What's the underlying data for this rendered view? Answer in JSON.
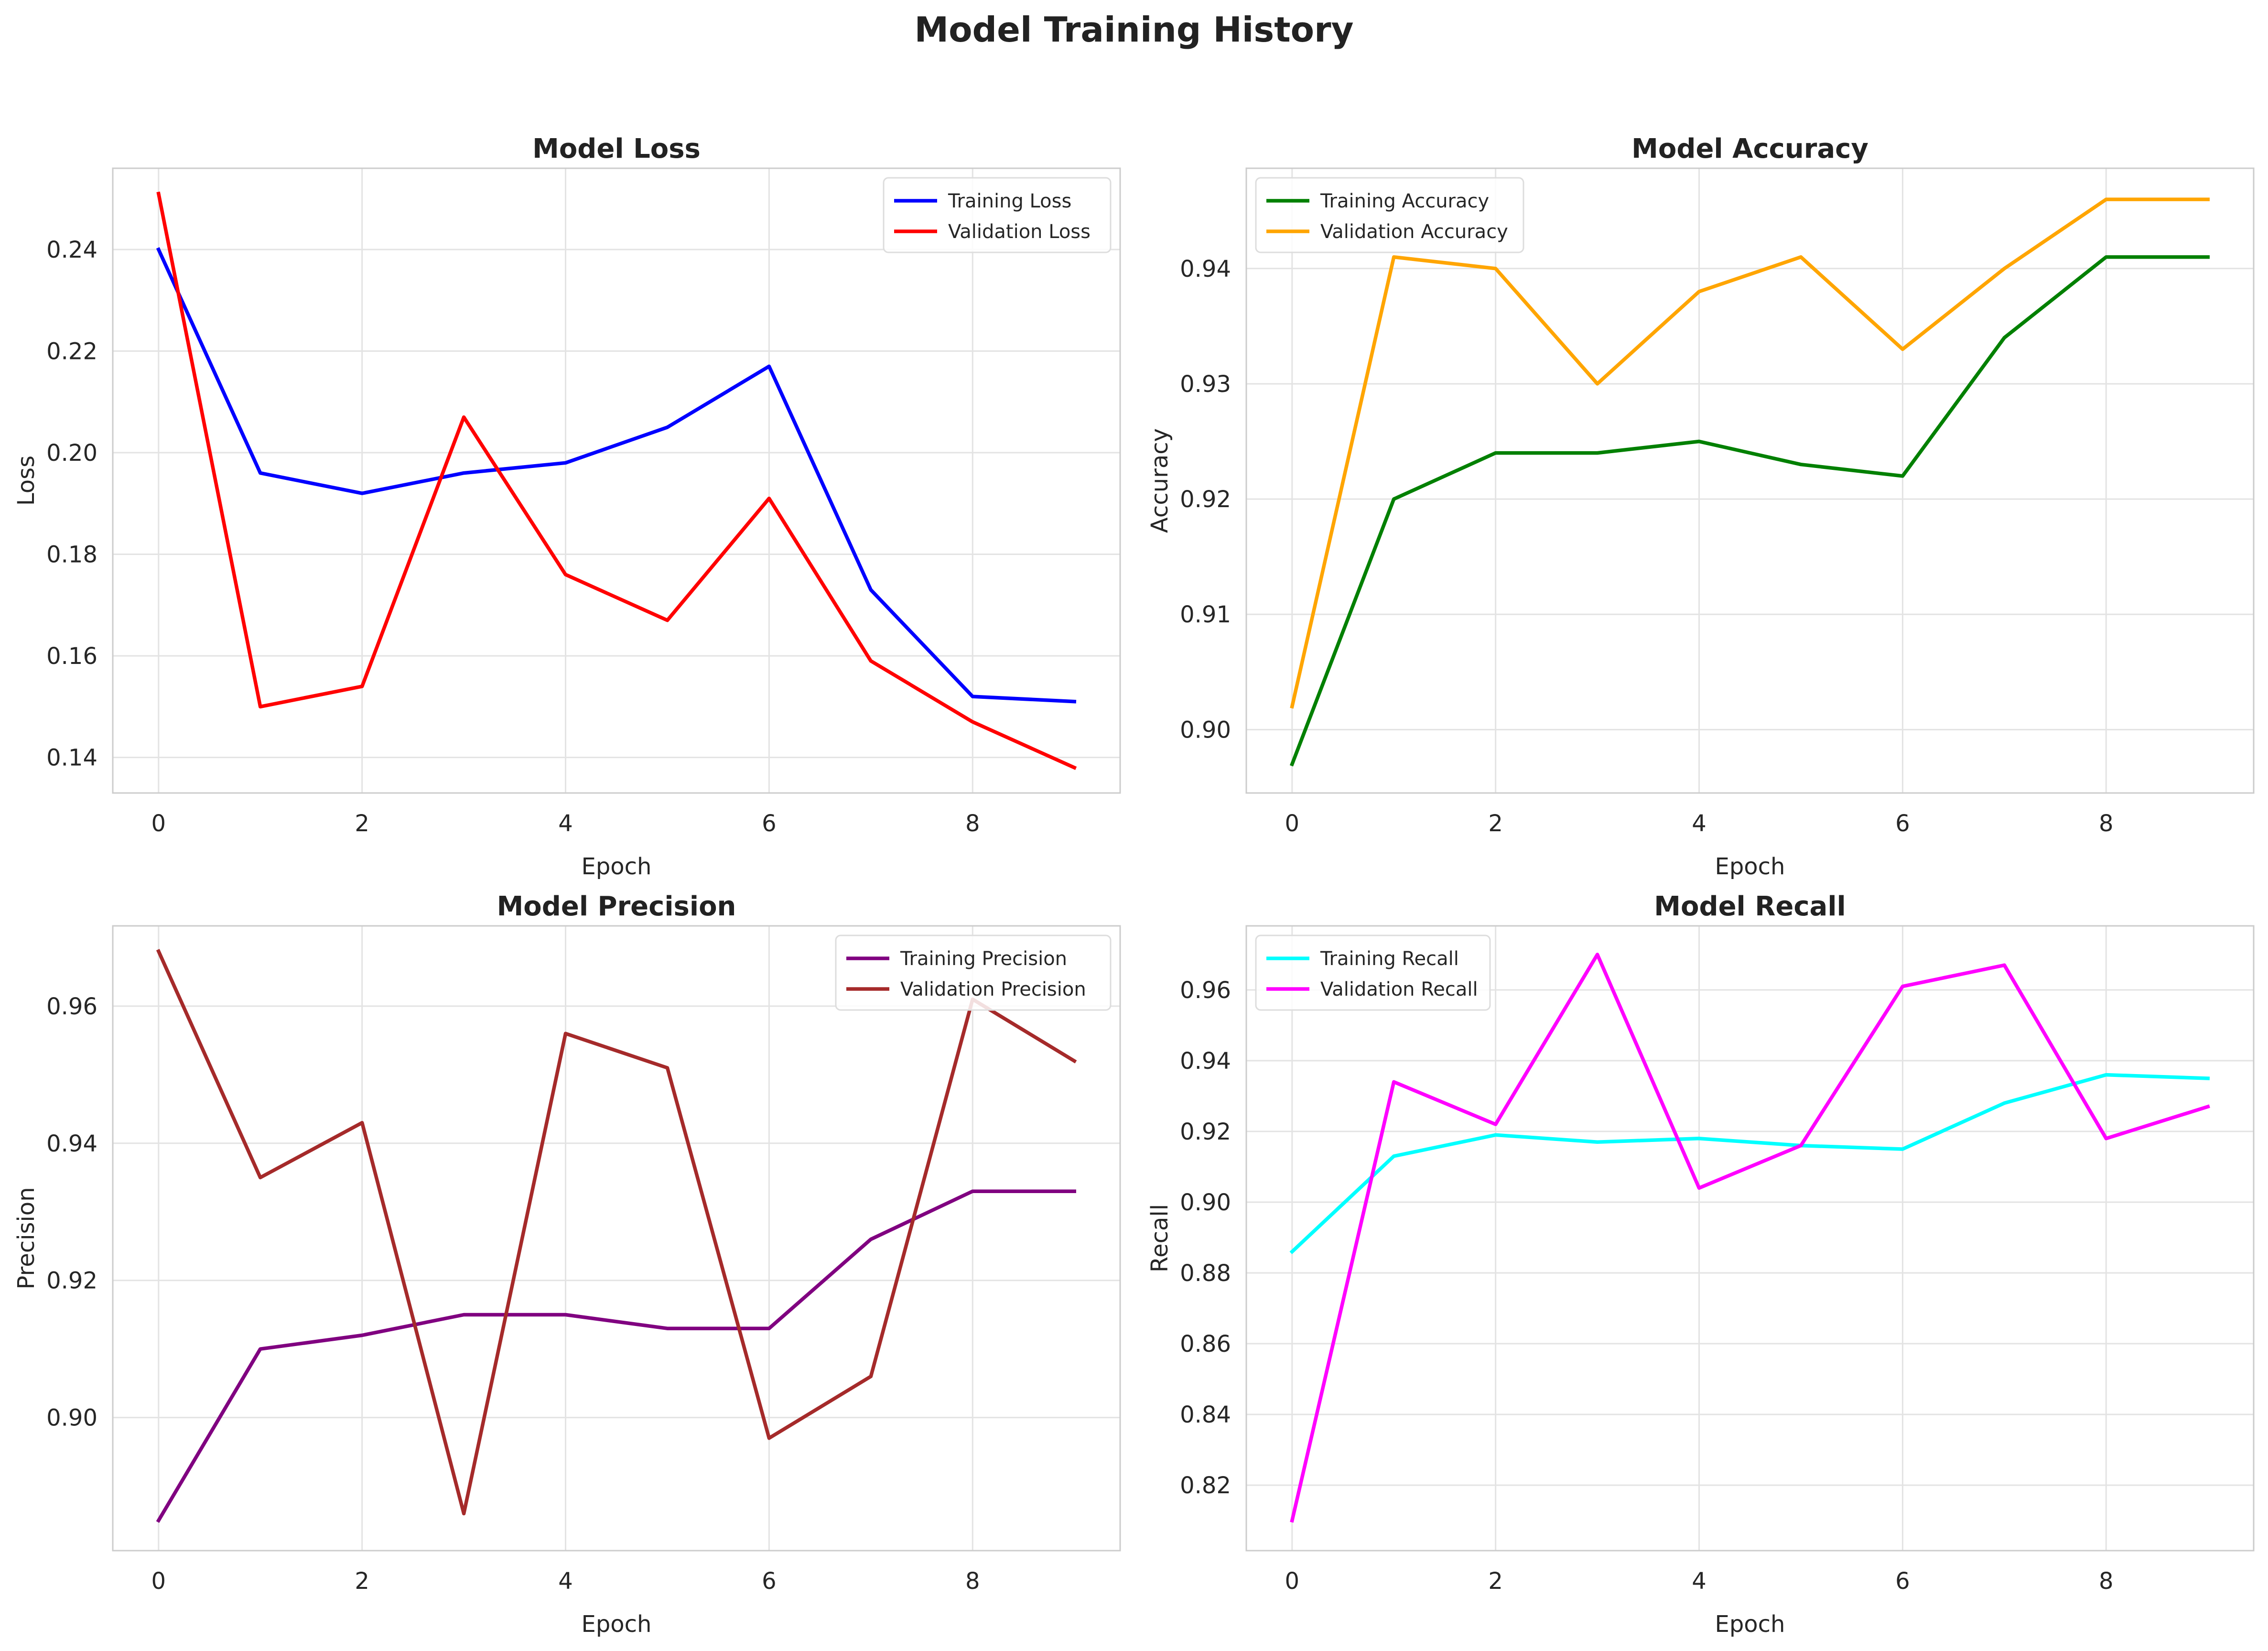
{
  "figure": {
    "title": "Model Training History"
  },
  "chart_data": [
    {
      "type": "line",
      "title": "Model Loss",
      "xlabel": "Epoch",
      "ylabel": "Loss",
      "x": [
        0,
        1,
        2,
        3,
        4,
        5,
        6,
        7,
        8,
        9
      ],
      "xlim": [
        -0.45,
        9.45
      ],
      "ylim": [
        0.133,
        0.256
      ],
      "xticks": [
        "0",
        "2",
        "4",
        "6",
        "8"
      ],
      "xtick_values": [
        0,
        2,
        4,
        6,
        8
      ],
      "yticks": [
        "0.14",
        "0.16",
        "0.18",
        "0.20",
        "0.22",
        "0.24"
      ],
      "ytick_values": [
        0.14,
        0.16,
        0.18,
        0.2,
        0.22,
        0.24
      ],
      "grid": true,
      "legend": "upper right",
      "series": [
        {
          "name": "Training Loss",
          "color": "#0000ff",
          "values": [
            0.24,
            0.196,
            0.192,
            0.196,
            0.198,
            0.205,
            0.217,
            0.173,
            0.152,
            0.151
          ]
        },
        {
          "name": "Validation Loss",
          "color": "#ff0000",
          "values": [
            0.251,
            0.15,
            0.154,
            0.207,
            0.176,
            0.167,
            0.191,
            0.159,
            0.147,
            0.138
          ]
        }
      ]
    },
    {
      "type": "line",
      "title": "Model Accuracy",
      "xlabel": "Epoch",
      "ylabel": "Accuracy",
      "x": [
        0,
        1,
        2,
        3,
        4,
        5,
        6,
        7,
        8,
        9
      ],
      "xlim": [
        -0.45,
        9.45
      ],
      "ylim": [
        0.8945,
        0.9487
      ],
      "xticks": [
        "0",
        "2",
        "4",
        "6",
        "8"
      ],
      "xtick_values": [
        0,
        2,
        4,
        6,
        8
      ],
      "yticks": [
        "0.90",
        "0.91",
        "0.92",
        "0.93",
        "0.94"
      ],
      "ytick_values": [
        0.9,
        0.91,
        0.92,
        0.93,
        0.94
      ],
      "grid": true,
      "legend": "upper left",
      "series": [
        {
          "name": "Training Accuracy",
          "color": "#008000",
          "values": [
            0.897,
            0.92,
            0.924,
            0.924,
            0.925,
            0.923,
            0.922,
            0.934,
            0.941,
            0.941
          ]
        },
        {
          "name": "Validation Accuracy",
          "color": "#ffa500",
          "values": [
            0.902,
            0.941,
            0.94,
            0.93,
            0.938,
            0.941,
            0.933,
            0.94,
            0.946,
            0.946
          ]
        }
      ]
    },
    {
      "type": "line",
      "title": "Model Precision",
      "xlabel": "Epoch",
      "ylabel": "Precision",
      "x": [
        0,
        1,
        2,
        3,
        4,
        5,
        6,
        7,
        8,
        9
      ],
      "xlim": [
        -0.45,
        9.45
      ],
      "ylim": [
        0.8806,
        0.9717
      ],
      "xticks": [
        "0",
        "2",
        "4",
        "6",
        "8"
      ],
      "xtick_values": [
        0,
        2,
        4,
        6,
        8
      ],
      "yticks": [
        "0.90",
        "0.92",
        "0.94",
        "0.96"
      ],
      "ytick_values": [
        0.9,
        0.92,
        0.94,
        0.96
      ],
      "grid": true,
      "legend": "upper right",
      "series": [
        {
          "name": "Training Precision",
          "color": "#800080",
          "values": [
            0.885,
            0.91,
            0.912,
            0.915,
            0.915,
            0.913,
            0.913,
            0.926,
            0.933,
            0.933
          ]
        },
        {
          "name": "Validation Precision",
          "color": "#a52a2a",
          "values": [
            0.968,
            0.935,
            0.943,
            0.886,
            0.956,
            0.951,
            0.897,
            0.906,
            0.961,
            0.952
          ]
        }
      ]
    },
    {
      "type": "line",
      "title": "Model Recall",
      "xlabel": "Epoch",
      "ylabel": "Recall",
      "x": [
        0,
        1,
        2,
        3,
        4,
        5,
        6,
        7,
        8,
        9
      ],
      "xlim": [
        -0.45,
        9.45
      ],
      "ylim": [
        0.8015,
        0.9781
      ],
      "xticks": [
        "0",
        "2",
        "4",
        "6",
        "8"
      ],
      "xtick_values": [
        0,
        2,
        4,
        6,
        8
      ],
      "yticks": [
        "0.82",
        "0.84",
        "0.86",
        "0.88",
        "0.90",
        "0.92",
        "0.94",
        "0.96"
      ],
      "ytick_values": [
        0.82,
        0.84,
        0.86,
        0.88,
        0.9,
        0.92,
        0.94,
        0.96
      ],
      "grid": true,
      "legend": "upper left",
      "series": [
        {
          "name": "Training Recall",
          "color": "#00ffff",
          "values": [
            0.886,
            0.913,
            0.919,
            0.917,
            0.918,
            0.916,
            0.915,
            0.928,
            0.936,
            0.935
          ]
        },
        {
          "name": "Validation Recall",
          "color": "#ff00ff",
          "values": [
            0.81,
            0.934,
            0.922,
            0.97,
            0.904,
            0.916,
            0.961,
            0.967,
            0.918,
            0.927
          ]
        }
      ]
    }
  ]
}
